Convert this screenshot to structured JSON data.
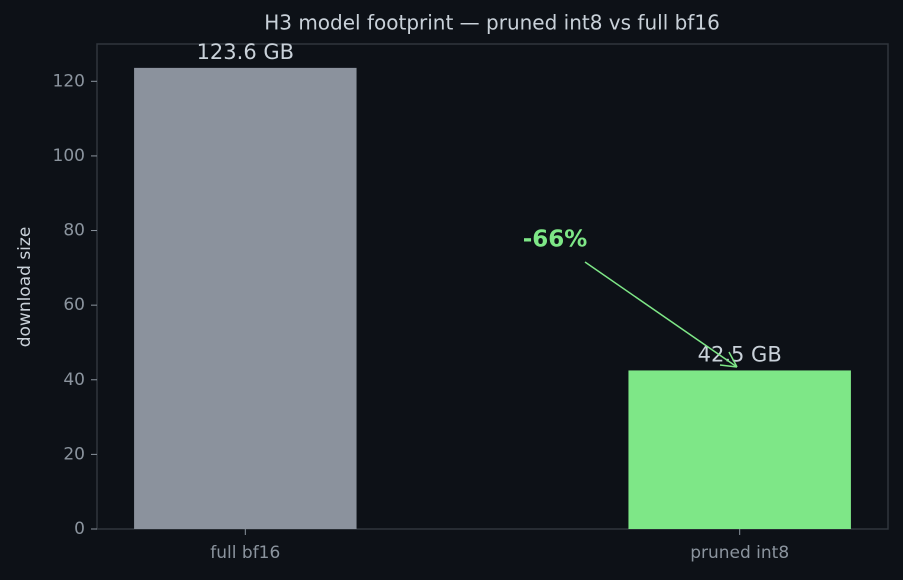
{
  "chart_data": {
    "type": "bar",
    "title": "H3 model footprint — pruned int8 vs full bf16",
    "y_label": "download size",
    "categories": [
      "full bf16",
      "pruned int8"
    ],
    "values": [
      123.6,
      42.5
    ],
    "value_labels": [
      "123.6 GB",
      "42.5 GB"
    ],
    "colors": [
      "#8b929d",
      "#7ee787"
    ],
    "ylim": [
      0,
      130
    ],
    "yticks": [
      0,
      20,
      40,
      60,
      80,
      100,
      120
    ],
    "annotation": "-66%",
    "annotation_color": "#7ee787"
  }
}
